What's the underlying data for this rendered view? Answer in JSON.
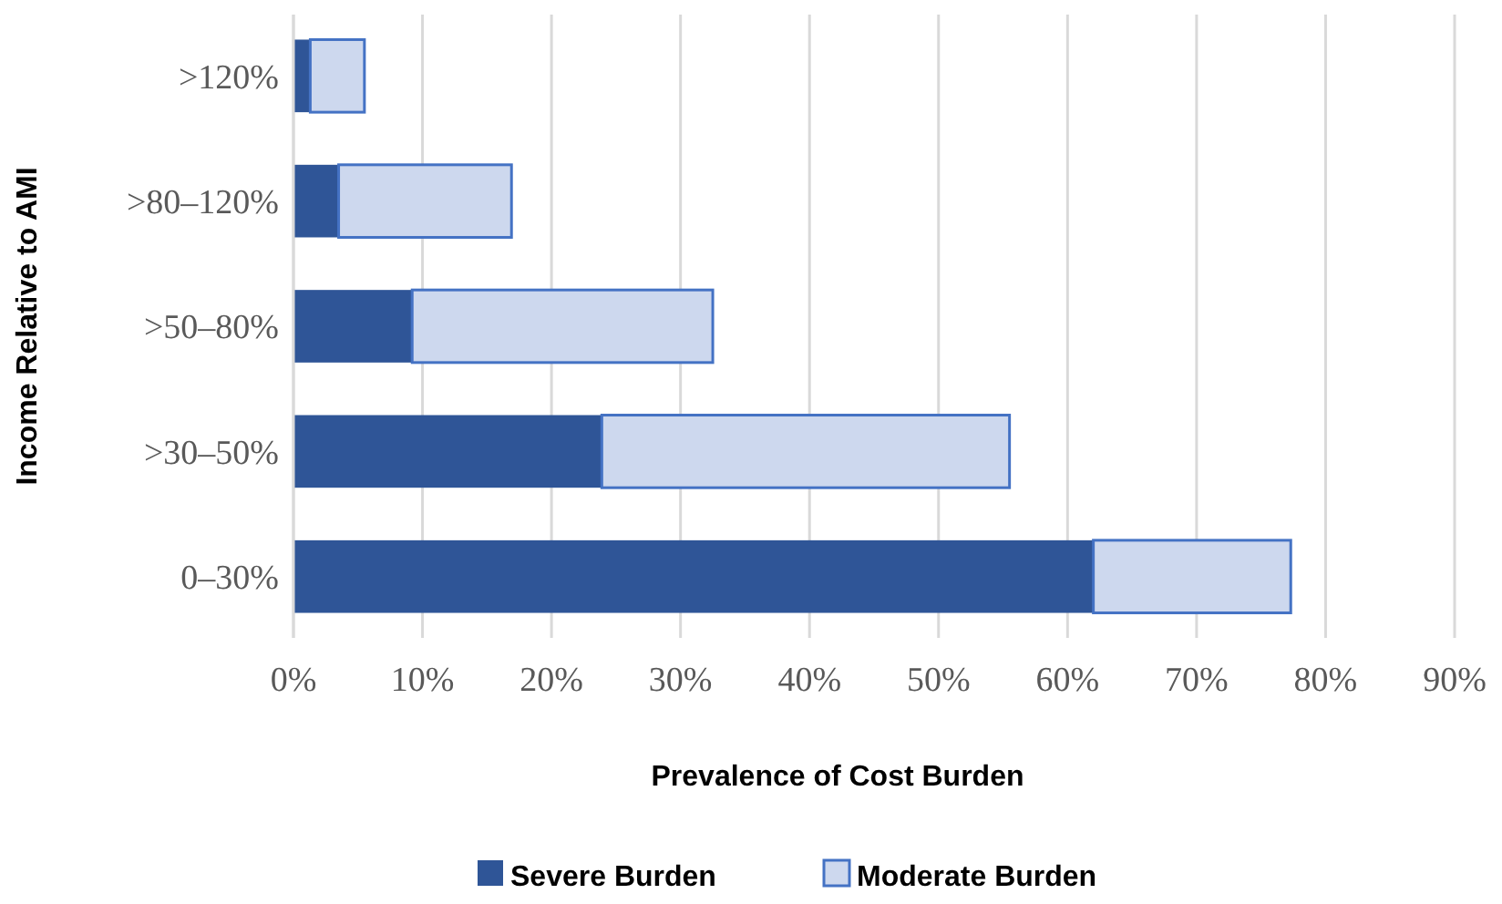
{
  "chart_data": {
    "type": "bar",
    "orientation": "horizontal",
    "stacked": true,
    "xlabel": "Prevalence of Cost Burden",
    "ylabel": "Income Relative to AMI",
    "categories": [
      ">120%",
      ">80–120%",
      ">50–80%",
      ">30–50%",
      "0–30%"
    ],
    "series": [
      {
        "name": "Severe Burden",
        "color": "#2f5597",
        "values": [
          1.3,
          3.5,
          9.2,
          23.9,
          62
        ]
      },
      {
        "name": "Moderate Burden",
        "color": "#cdd8ee",
        "values": [
          4.2,
          13.4,
          23.3,
          31.6,
          15.3
        ]
      }
    ],
    "xlim": [
      0,
      90
    ],
    "xticks": [
      {
        "value": 0,
        "label": "0%"
      },
      {
        "value": 10,
        "label": "10%"
      },
      {
        "value": 20,
        "label": "20%"
      },
      {
        "value": 30,
        "label": "30%"
      },
      {
        "value": 40,
        "label": "40%"
      },
      {
        "value": 50,
        "label": "50%"
      },
      {
        "value": 60,
        "label": "60%"
      },
      {
        "value": 70,
        "label": "70%"
      },
      {
        "value": 80,
        "label": "80%"
      },
      {
        "value": 90,
        "label": "90%"
      }
    ],
    "grid": "x",
    "legend": "bottom"
  }
}
